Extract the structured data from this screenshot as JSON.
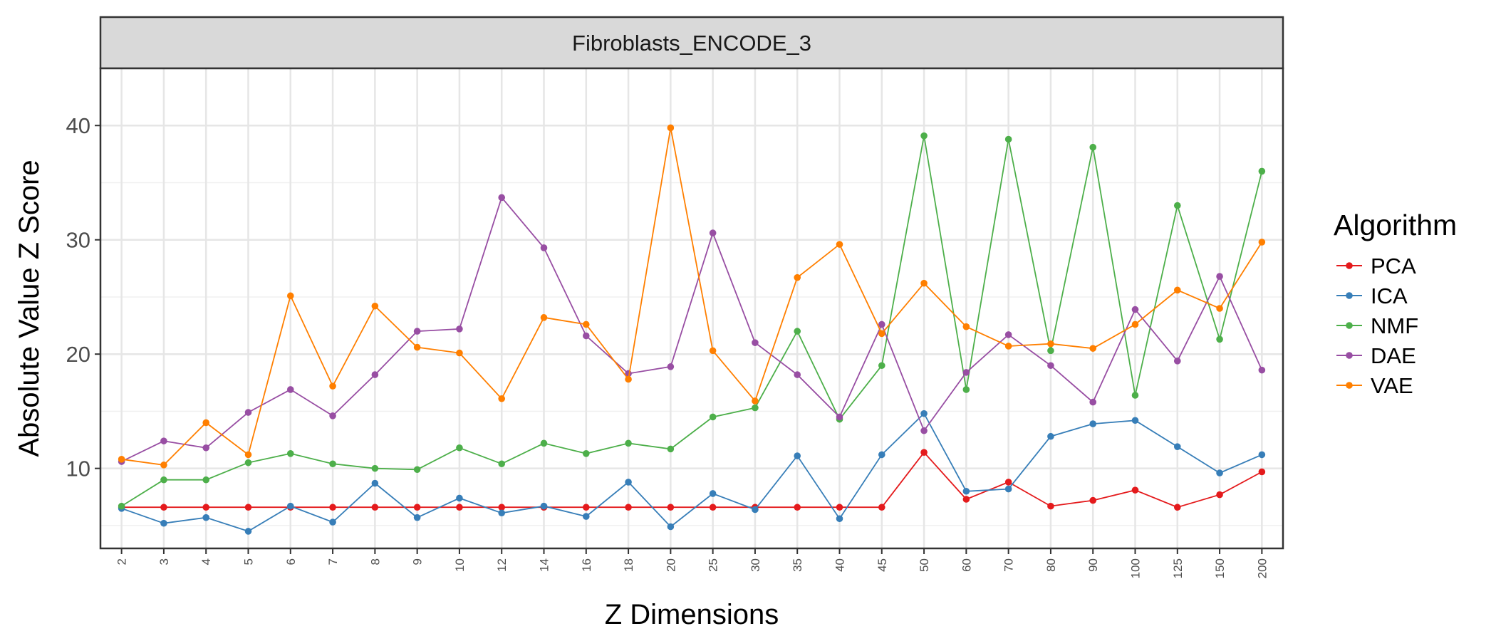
{
  "chart_data": {
    "type": "line",
    "facet_title": "Fibroblasts_ENCODE_3",
    "xlabel": "Z Dimensions",
    "ylabel": "Absolute Value Z Score",
    "ylim": [
      3,
      45
    ],
    "y_ticks": [
      10,
      20,
      30,
      40
    ],
    "grid": true,
    "legend_title": "Algorithm",
    "legend_position": "right",
    "categories": [
      "2",
      "3",
      "4",
      "5",
      "6",
      "7",
      "8",
      "9",
      "10",
      "12",
      "14",
      "16",
      "18",
      "20",
      "25",
      "30",
      "35",
      "40",
      "45",
      "50",
      "60",
      "70",
      "80",
      "90",
      "100",
      "125",
      "150",
      "200"
    ],
    "series": [
      {
        "name": "PCA",
        "color": "#e41a1c",
        "values": [
          6.6,
          6.6,
          6.6,
          6.6,
          6.6,
          6.6,
          6.6,
          6.6,
          6.6,
          6.6,
          6.6,
          6.6,
          6.6,
          6.6,
          6.6,
          6.6,
          6.6,
          6.6,
          6.6,
          11.4,
          7.3,
          8.8,
          6.7,
          7.2,
          8.1,
          6.6,
          7.7,
          9.7
        ]
      },
      {
        "name": "ICA",
        "color": "#377eb8",
        "values": [
          6.5,
          5.2,
          5.7,
          4.5,
          6.7,
          5.3,
          8.7,
          5.7,
          7.4,
          6.1,
          6.7,
          5.8,
          8.8,
          4.9,
          7.8,
          6.4,
          11.1,
          5.6,
          11.2,
          14.8,
          8.0,
          8.2,
          12.8,
          13.9,
          14.2,
          11.9,
          9.6,
          11.2
        ]
      },
      {
        "name": "NMF",
        "color": "#4daf4a",
        "values": [
          6.7,
          9.0,
          9.0,
          10.5,
          11.3,
          10.4,
          10.0,
          9.9,
          11.8,
          10.4,
          12.2,
          11.3,
          12.2,
          11.7,
          14.5,
          15.3,
          22.0,
          14.3,
          19.0,
          39.1,
          16.9,
          38.8,
          20.3,
          38.1,
          16.4,
          33.0,
          21.3,
          36.0
        ]
      },
      {
        "name": "DAE",
        "color": "#984ea3",
        "values": [
          10.6,
          12.4,
          11.8,
          14.9,
          16.9,
          14.6,
          18.2,
          22.0,
          22.2,
          33.7,
          29.3,
          21.6,
          18.3,
          18.9,
          30.6,
          21.0,
          18.2,
          14.5,
          22.6,
          13.3,
          18.4,
          21.7,
          19.0,
          15.8,
          23.9,
          19.4,
          26.8,
          18.6
        ]
      },
      {
        "name": "VAE",
        "color": "#ff7f00",
        "values": [
          10.8,
          10.3,
          14.0,
          11.2,
          25.1,
          17.2,
          24.2,
          20.6,
          20.1,
          16.1,
          23.2,
          22.6,
          17.8,
          39.8,
          20.3,
          15.9,
          26.7,
          29.6,
          21.8,
          26.2,
          22.4,
          20.7,
          20.9,
          20.5,
          22.6,
          25.6,
          24.0,
          29.8
        ]
      }
    ]
  }
}
